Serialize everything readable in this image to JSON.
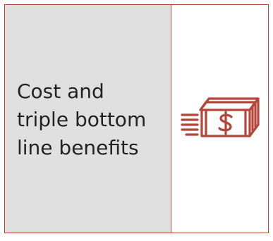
{
  "card": {
    "label": "Cost and triple bottom line benefits",
    "icon": "money-stack-icon"
  },
  "colors": {
    "accent": "#b5453a",
    "panel_background": "#dfe0df",
    "text": "#222222"
  }
}
